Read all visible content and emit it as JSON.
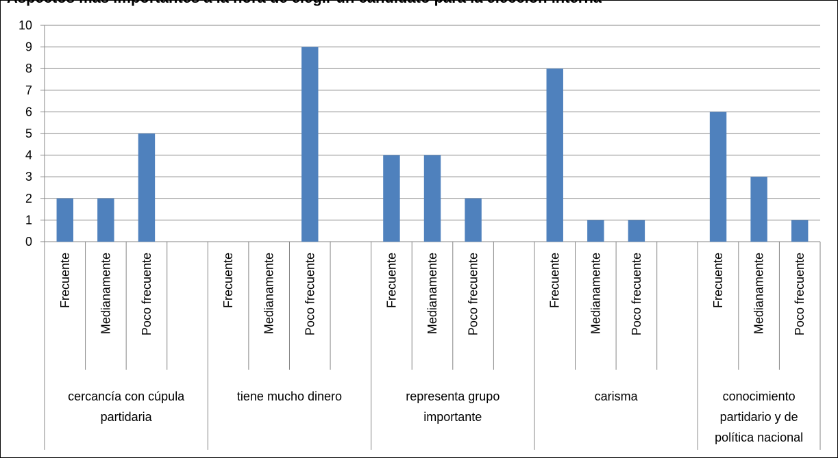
{
  "title": "Aspectos más importantes a la hora de elegir un candidato para la elección interna",
  "chart_data": {
    "type": "bar",
    "title": "Aspectos más importantes a la hora de elegir un candidato para la elección interna",
    "ylim": [
      0,
      10
    ],
    "yticks": [
      0,
      1,
      2,
      3,
      4,
      5,
      6,
      7,
      8,
      9,
      10
    ],
    "grid": true,
    "legend": "none",
    "bar_color": "#4f81bd",
    "groups": [
      {
        "label": "cercancía con cúpula partidaria",
        "lines": [
          "cercancía con cúpula",
          "partidaria"
        ],
        "categories": [
          "Frecuente",
          "Medianamente",
          "Poco frecuente",
          ""
        ],
        "values": [
          2,
          2,
          5,
          null
        ]
      },
      {
        "label": "tiene mucho dinero",
        "lines": [
          "tiene mucho dinero"
        ],
        "categories": [
          "Frecuente",
          "Medianamente",
          "Poco frecuente",
          ""
        ],
        "values": [
          0,
          0,
          9,
          null
        ]
      },
      {
        "label": "representa grupo importante",
        "lines": [
          "representa grupo",
          "importante"
        ],
        "categories": [
          "Frecuente",
          "Medianamente",
          "Poco frecuente",
          ""
        ],
        "values": [
          4,
          4,
          2,
          null
        ]
      },
      {
        "label": "carisma",
        "lines": [
          "carisma"
        ],
        "categories": [
          "Frecuente",
          "Medianamente",
          "Poco frecuente",
          ""
        ],
        "values": [
          8,
          1,
          1,
          null
        ]
      },
      {
        "label": "conocimiento partidario y de política nacional",
        "lines": [
          "conocimiento",
          "partidario y de",
          "política nacional"
        ],
        "categories": [
          "Frecuente",
          "Medianamente",
          "Poco frecuente"
        ],
        "values": [
          6,
          3,
          1
        ]
      }
    ]
  }
}
